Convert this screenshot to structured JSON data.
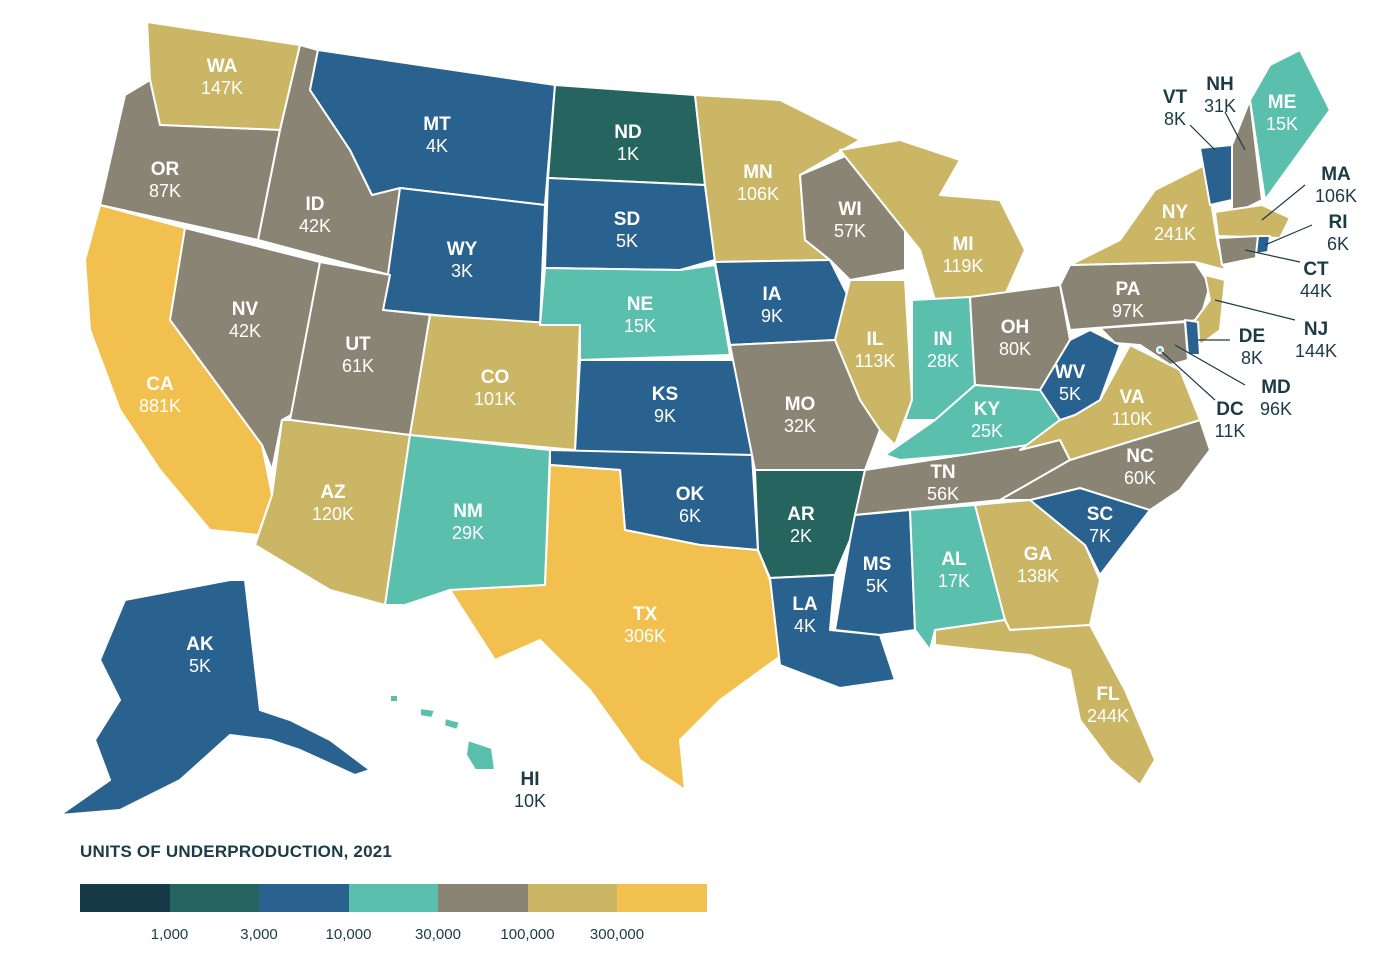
{
  "palette": {
    "below_1000": "#163a47",
    "1000_3000": "#26655f",
    "3000_10000": "#2a628f",
    "10000_30000": "#5bbfae",
    "30000_100000": "#8a8474",
    "100000_300000": "#cab665",
    "above_300000": "#f2c04f"
  },
  "legend": {
    "title": "UNITS OF UNDERPRODUCTION, 2021",
    "ticks": [
      "1,000",
      "3,000",
      "10,000",
      "30,000",
      "100,000",
      "300,000"
    ]
  },
  "states": {
    "WA": {
      "code": "WA",
      "value": "147K",
      "units": 147000
    },
    "OR": {
      "code": "OR",
      "value": "87K",
      "units": 87000
    },
    "CA": {
      "code": "CA",
      "value": "881K",
      "units": 881000
    },
    "ID": {
      "code": "ID",
      "value": "42K",
      "units": 42000
    },
    "NV": {
      "code": "NV",
      "value": "42K",
      "units": 42000
    },
    "MT": {
      "code": "MT",
      "value": "4K",
      "units": 4000
    },
    "WY": {
      "code": "WY",
      "value": "3K",
      "units": 3000
    },
    "UT": {
      "code": "UT",
      "value": "61K",
      "units": 61000
    },
    "AZ": {
      "code": "AZ",
      "value": "120K",
      "units": 120000
    },
    "CO": {
      "code": "CO",
      "value": "101K",
      "units": 101000
    },
    "NM": {
      "code": "NM",
      "value": "29K",
      "units": 29000
    },
    "ND": {
      "code": "ND",
      "value": "1K",
      "units": 1000
    },
    "SD": {
      "code": "SD",
      "value": "5K",
      "units": 5000
    },
    "NE": {
      "code": "NE",
      "value": "15K",
      "units": 15000
    },
    "KS": {
      "code": "KS",
      "value": "9K",
      "units": 9000
    },
    "OK": {
      "code": "OK",
      "value": "6K",
      "units": 6000
    },
    "TX": {
      "code": "TX",
      "value": "306K",
      "units": 306000
    },
    "MN": {
      "code": "MN",
      "value": "106K",
      "units": 106000
    },
    "IA": {
      "code": "IA",
      "value": "9K",
      "units": 9000
    },
    "MO": {
      "code": "MO",
      "value": "32K",
      "units": 32000
    },
    "AR": {
      "code": "AR",
      "value": "2K",
      "units": 2000
    },
    "LA": {
      "code": "LA",
      "value": "4K",
      "units": 4000
    },
    "WI": {
      "code": "WI",
      "value": "57K",
      "units": 57000
    },
    "IL": {
      "code": "IL",
      "value": "113K",
      "units": 113000
    },
    "MI": {
      "code": "MI",
      "value": "119K",
      "units": 119000
    },
    "IN": {
      "code": "IN",
      "value": "28K",
      "units": 28000
    },
    "OH": {
      "code": "OH",
      "value": "80K",
      "units": 80000
    },
    "KY": {
      "code": "KY",
      "value": "25K",
      "units": 25000
    },
    "TN": {
      "code": "TN",
      "value": "56K",
      "units": 56000
    },
    "MS": {
      "code": "MS",
      "value": "5K",
      "units": 5000
    },
    "AL": {
      "code": "AL",
      "value": "17K",
      "units": 17000
    },
    "GA": {
      "code": "GA",
      "value": "138K",
      "units": 138000
    },
    "FL": {
      "code": "FL",
      "value": "244K",
      "units": 244000
    },
    "SC": {
      "code": "SC",
      "value": "7K",
      "units": 7000
    },
    "NC": {
      "code": "NC",
      "value": "60K",
      "units": 60000
    },
    "VA": {
      "code": "VA",
      "value": "110K",
      "units": 110000
    },
    "WV": {
      "code": "WV",
      "value": "5K",
      "units": 5000
    },
    "PA": {
      "code": "PA",
      "value": "97K",
      "units": 97000
    },
    "NY": {
      "code": "NY",
      "value": "241K",
      "units": 241000
    },
    "VT": {
      "code": "VT",
      "value": "8K",
      "units": 8000
    },
    "NH": {
      "code": "NH",
      "value": "31K",
      "units": 31000
    },
    "ME": {
      "code": "ME",
      "value": "15K",
      "units": 15000
    },
    "MA": {
      "code": "MA",
      "value": "106K",
      "units": 106000
    },
    "RI": {
      "code": "RI",
      "value": "6K",
      "units": 6000
    },
    "CT": {
      "code": "CT",
      "value": "44K",
      "units": 44000
    },
    "NJ": {
      "code": "NJ",
      "value": "144K",
      "units": 144000
    },
    "DE": {
      "code": "DE",
      "value": "8K",
      "units": 8000
    },
    "MD": {
      "code": "MD",
      "value": "96K",
      "units": 96000
    },
    "DC": {
      "code": "DC",
      "value": "11K",
      "units": 11000
    },
    "AK": {
      "code": "AK",
      "value": "5K",
      "units": 5000
    },
    "HI": {
      "code": "HI",
      "value": "10K",
      "units": 10000
    }
  }
}
